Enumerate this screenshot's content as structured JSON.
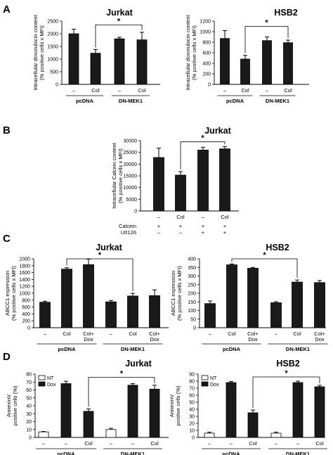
{
  "panels": [
    {
      "letter": "A",
      "charts": [
        {
          "type": "bar",
          "title": "Jurkat",
          "ylabel": [
            "Intracellular doxorubicin content",
            "(% positive cells x MFI)"
          ],
          "categories": [
            "–",
            "Col",
            "–",
            "Col"
          ],
          "groups": [
            {
              "label": "pcDNA",
              "span": [
                0,
                1
              ]
            },
            {
              "label": "DN-MEK1",
              "span": [
                2,
                3
              ]
            }
          ],
          "series": [
            {
              "values": [
                2000,
                1230,
                1800,
                1760
              ],
              "errors": [
                180,
                150,
                60,
                300
              ],
              "color": "#1a1a1a"
            }
          ],
          "ylim": [
            0,
            2500
          ],
          "yticks": [
            0,
            500,
            1000,
            1500,
            2000,
            2500
          ],
          "significance": [
            {
              "from": 1,
              "to": 3,
              "label": "*",
              "at": 2350
            }
          ]
        },
        {
          "type": "bar",
          "title": "HSB2",
          "ylabel": [
            "Intracellular doxorubicin content",
            "(% positive cells x MFI)"
          ],
          "categories": [
            "–",
            "Col",
            "–",
            "Col"
          ],
          "groups": [
            {
              "label": "pcDNA",
              "span": [
                0,
                1
              ]
            },
            {
              "label": "DN-MEK1",
              "span": [
                2,
                3
              ]
            }
          ],
          "series": [
            {
              "values": [
                870,
                480,
                830,
                790
              ],
              "errors": [
                150,
                70,
                70,
                50
              ],
              "color": "#1a1a1a"
            }
          ],
          "ylim": [
            0,
            1200
          ],
          "yticks": [
            0,
            200,
            400,
            600,
            800,
            1000,
            1200
          ],
          "significance": [
            {
              "from": 1,
              "to": 3,
              "label": "*",
              "at": 1100
            }
          ]
        }
      ]
    },
    {
      "letter": "B",
      "charts": [
        {
          "type": "bar",
          "title": "Jurkat",
          "ylabel": [
            "Intracellular Calcein content",
            "(% positive cells x MFI)"
          ],
          "categories": [
            "–",
            "Col",
            "–",
            "Col"
          ],
          "extra_rows": [
            {
              "label": "Calcein",
              "marks": [
                "+",
                "+",
                "+",
                "+"
              ]
            },
            {
              "label": "U0126",
              "marks": [
                "–",
                "–",
                "+",
                "+"
              ]
            }
          ],
          "series": [
            {
              "values": [
                22800,
                15300,
                26000,
                26500
              ],
              "errors": [
                4000,
                1500,
                1200,
                1000
              ],
              "color": "#1a1a1a"
            }
          ],
          "ylim": [
            0,
            30000
          ],
          "yticks": [
            0,
            5000,
            10000,
            15000,
            20000,
            25000,
            30000
          ],
          "significance": [
            {
              "from": 1,
              "to": 3,
              "label": "*",
              "at": 29500
            }
          ]
        }
      ]
    },
    {
      "letter": "C",
      "charts": [
        {
          "type": "bar",
          "title": "Jurkat",
          "ylabel": [
            "ABCC1 expression",
            "(% positive cells x MFI)"
          ],
          "categories": [
            "–",
            "Col",
            "Col+\nDox",
            "–",
            "Col",
            "Col+\nDox"
          ],
          "groups": [
            {
              "label": "pcDNA",
              "span": [
                0,
                2
              ]
            },
            {
              "label": "DN-MEK1",
              "span": [
                3,
                5
              ]
            }
          ],
          "series": [
            {
              "values": [
                740,
                1700,
                1830,
                750,
                920,
                930
              ],
              "errors": [
                30,
                40,
                160,
                40,
                80,
                170
              ],
              "color": "#1a1a1a"
            }
          ],
          "ylim": [
            0,
            2000
          ],
          "yticks": [
            0,
            200,
            400,
            600,
            800,
            1000,
            1200,
            1400,
            1600,
            1800,
            2000
          ],
          "significance": [
            {
              "from": 1,
              "to": 4,
              "label": "*",
              "at": 2000
            }
          ]
        },
        {
          "type": "bar",
          "title": "HSB2",
          "ylabel": [
            "ABCC1 expression",
            "(% positive cells x MFI)"
          ],
          "categories": [
            "–",
            "Col",
            "Col+\nDox",
            "–",
            "Col",
            "Col+\nDox"
          ],
          "groups": [
            {
              "label": "pcDNA",
              "span": [
                0,
                2
              ]
            },
            {
              "label": "DN-MEK1",
              "span": [
                3,
                5
              ]
            }
          ],
          "series": [
            {
              "values": [
                140,
                365,
                345,
                145,
                265,
                262
              ],
              "errors": [
                15,
                5,
                5,
                6,
                12,
                12
              ],
              "color": "#1a1a1a"
            }
          ],
          "ylim": [
            0,
            400
          ],
          "yticks": [
            0,
            50,
            100,
            150,
            200,
            250,
            300,
            350,
            400
          ],
          "significance": [
            {
              "from": 1,
              "to": 4,
              "label": "*",
              "at": 400
            }
          ]
        }
      ]
    },
    {
      "letter": "D",
      "charts": [
        {
          "type": "bar",
          "title": "Jurkat",
          "ylabel": [
            "AnnexinV",
            "positive cells (%)"
          ],
          "legend": [
            {
              "name": "NT",
              "color": "#ffffff"
            },
            {
              "name": "Dox",
              "color": "#1a1a1a"
            }
          ],
          "legend_position": "top-left",
          "categories": [
            "–",
            "–",
            "Col",
            "–",
            "–",
            "Col"
          ],
          "groups": [
            {
              "label": "pcDNA",
              "span": [
                0,
                2
              ]
            },
            {
              "label": "DN-MEK1",
              "span": [
                3,
                5
              ]
            }
          ],
          "series": [
            {
              "values": [
                7,
                68,
                33,
                10,
                66,
                61
              ],
              "errors": [
                0.5,
                3,
                3,
                1.5,
                2,
                5
              ],
              "colors": [
                "#ffffff",
                "#1a1a1a",
                "#1a1a1a",
                "#ffffff",
                "#1a1a1a",
                "#1a1a1a"
              ]
            }
          ],
          "ylim": [
            0,
            80
          ],
          "yticks": [
            0,
            10,
            20,
            30,
            40,
            50,
            60,
            70,
            80
          ],
          "significance": [
            {
              "from": 2,
              "to": 5,
              "label": "*",
              "at": 76
            }
          ]
        },
        {
          "type": "bar",
          "title": "HSB2",
          "ylabel": [
            "AnnexinV",
            "positive cells (%)"
          ],
          "legend": [
            {
              "name": "NT",
              "color": "#ffffff"
            },
            {
              "name": "Dox",
              "color": "#1a1a1a"
            }
          ],
          "legend_position": "top-left",
          "categories": [
            "–",
            "–",
            "Col",
            "–",
            "–",
            "Col"
          ],
          "groups": [
            {
              "label": "pcDNA",
              "span": [
                0,
                2
              ]
            },
            {
              "label": "DN-MEK1",
              "span": [
                3,
                5
              ]
            }
          ],
          "series": [
            {
              "values": [
                6,
                78,
                35,
                6,
                78,
                72
              ],
              "errors": [
                1.5,
                1.5,
                4,
                1.5,
                2,
                2
              ],
              "colors": [
                "#ffffff",
                "#1a1a1a",
                "#1a1a1a",
                "#ffffff",
                "#1a1a1a",
                "#1a1a1a"
              ]
            }
          ],
          "ylim": [
            0,
            90
          ],
          "yticks": [
            0,
            10,
            20,
            30,
            40,
            50,
            60,
            70,
            80,
            90
          ],
          "significance": [
            {
              "from": 2,
              "to": 5,
              "label": "*",
              "at": 86
            }
          ]
        }
      ]
    }
  ],
  "chart_data": [
    {
      "type": "bar",
      "title": "Jurkat",
      "ylabel": "Intracellular doxorubicin content (% positive cells x MFI)",
      "categories": [
        "–",
        "Col",
        "–",
        "Col"
      ],
      "series": [
        {
          "values": [
            2000,
            1230,
            1800,
            1760
          ]
        }
      ],
      "ylim": [
        0,
        2500
      ]
    },
    {
      "type": "bar",
      "title": "HSB2",
      "ylabel": "Intracellular doxorubicin content (% positive cells x MFI)",
      "categories": [
        "–",
        "Col",
        "–",
        "Col"
      ],
      "series": [
        {
          "values": [
            870,
            480,
            830,
            790
          ]
        }
      ],
      "ylim": [
        0,
        1200
      ]
    },
    {
      "type": "bar",
      "title": "Jurkat",
      "ylabel": "Intracellular Calcein content (% positive cells x MFI)",
      "categories": [
        "–",
        "Col",
        "–",
        "Col"
      ],
      "series": [
        {
          "values": [
            22800,
            15300,
            26000,
            26500
          ]
        }
      ],
      "ylim": [
        0,
        30000
      ]
    },
    {
      "type": "bar",
      "title": "Jurkat",
      "ylabel": "ABCC1 expression (% positive cells x MFI)",
      "categories": [
        "–",
        "Col",
        "Col+ Dox",
        "–",
        "Col",
        "Col+ Dox"
      ],
      "series": [
        {
          "values": [
            740,
            1700,
            1830,
            750,
            920,
            930
          ]
        }
      ],
      "ylim": [
        0,
        2000
      ]
    },
    {
      "type": "bar",
      "title": "HSB2",
      "ylabel": "ABCC1 expression (% positive cells x MFI)",
      "categories": [
        "–",
        "Col",
        "Col+ Dox",
        "–",
        "Col",
        "Col+ Dox"
      ],
      "series": [
        {
          "values": [
            140,
            365,
            345,
            145,
            265,
            262
          ]
        }
      ],
      "ylim": [
        0,
        400
      ]
    },
    {
      "type": "bar",
      "title": "Jurkat",
      "ylabel": "AnnexinV positive cells (%)",
      "categories": [
        "–",
        "–",
        "Col",
        "–",
        "–",
        "Col"
      ],
      "series": [
        {
          "name": "NT",
          "values": [
            7,
            null,
            null,
            10,
            null,
            null
          ]
        },
        {
          "name": "Dox",
          "values": [
            null,
            68,
            33,
            null,
            66,
            61
          ]
        }
      ],
      "ylim": [
        0,
        80
      ]
    },
    {
      "type": "bar",
      "title": "HSB2",
      "ylabel": "AnnexinV positive cells (%)",
      "categories": [
        "–",
        "–",
        "Col",
        "–",
        "–",
        "Col"
      ],
      "series": [
        {
          "name": "NT",
          "values": [
            6,
            null,
            null,
            6,
            null,
            null
          ]
        },
        {
          "name": "Dox",
          "values": [
            null,
            78,
            35,
            null,
            78,
            72
          ]
        }
      ],
      "ylim": [
        0,
        90
      ]
    }
  ]
}
